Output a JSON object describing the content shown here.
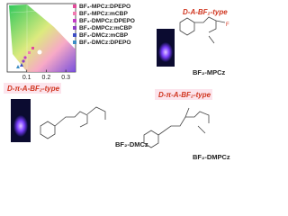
{
  "cie": {
    "xlim": [
      0,
      0.35
    ],
    "xticks": [
      0.1,
      0.2,
      0.3
    ],
    "legend": [
      "BF₂-MPCz:DPEPO",
      "BF₂-MPCz:mCBP",
      "BF₂-DMPCz:DPEPO",
      "BF₂-DMPCz:mCBP",
      "BF₂-DMCz:mCBP",
      "BF₂-DMCz:DPEPO"
    ]
  },
  "molecules": [
    {
      "type_label": "D-A-BF₂-type",
      "name": "BF₂-MPCz"
    },
    {
      "type_label": "D-π-A-BF₂-type",
      "name": "BF₂-DMCz"
    },
    {
      "type_label": "D-π-A-BF₂-type",
      "name": "BF₂-DMPCz"
    }
  ]
}
